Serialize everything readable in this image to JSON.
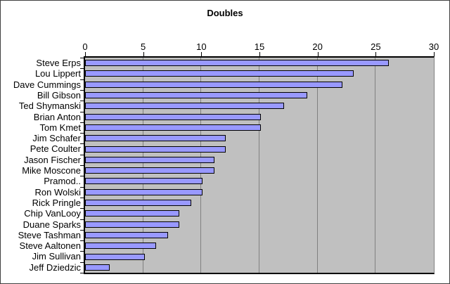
{
  "chart_data": {
    "type": "bar",
    "orientation": "horizontal",
    "title": "Doubles",
    "categories": [
      "Steve Erps",
      "Lou Lippert",
      "Dave Cummings",
      "Bill Gibson",
      "Ted Shymanski",
      "Brian Anton",
      "Tom Kmet",
      "Jim Schafer",
      "Pete Coulter",
      "Jason Fischer",
      "Mike Moscone",
      "Pramod..",
      "Ron Wolski",
      "Rick Pringle",
      "Chip VanLooy",
      "Duane Sparks",
      "Steve Tashman",
      "Steve Aaltonen",
      "Jim Sullivan",
      "Jeff Dziedzic"
    ],
    "values": [
      26,
      23,
      22,
      19,
      17,
      15,
      15,
      12,
      12,
      11,
      11,
      10,
      10,
      9,
      8,
      8,
      7,
      6,
      5,
      2
    ],
    "xlabel": "",
    "ylabel": "",
    "xlim": [
      0,
      30
    ],
    "x_ticks": [
      0,
      5,
      10,
      15,
      20,
      25,
      30
    ],
    "grid": "vertical",
    "legend": "none",
    "colors": {
      "bar_fill": "#9999ff",
      "bar_border": "#000000",
      "plot_background": "#c0c0c0",
      "gridline": "#808080",
      "axis": "#000000",
      "chart_background": "#ffffff",
      "text": "#000000"
    }
  }
}
